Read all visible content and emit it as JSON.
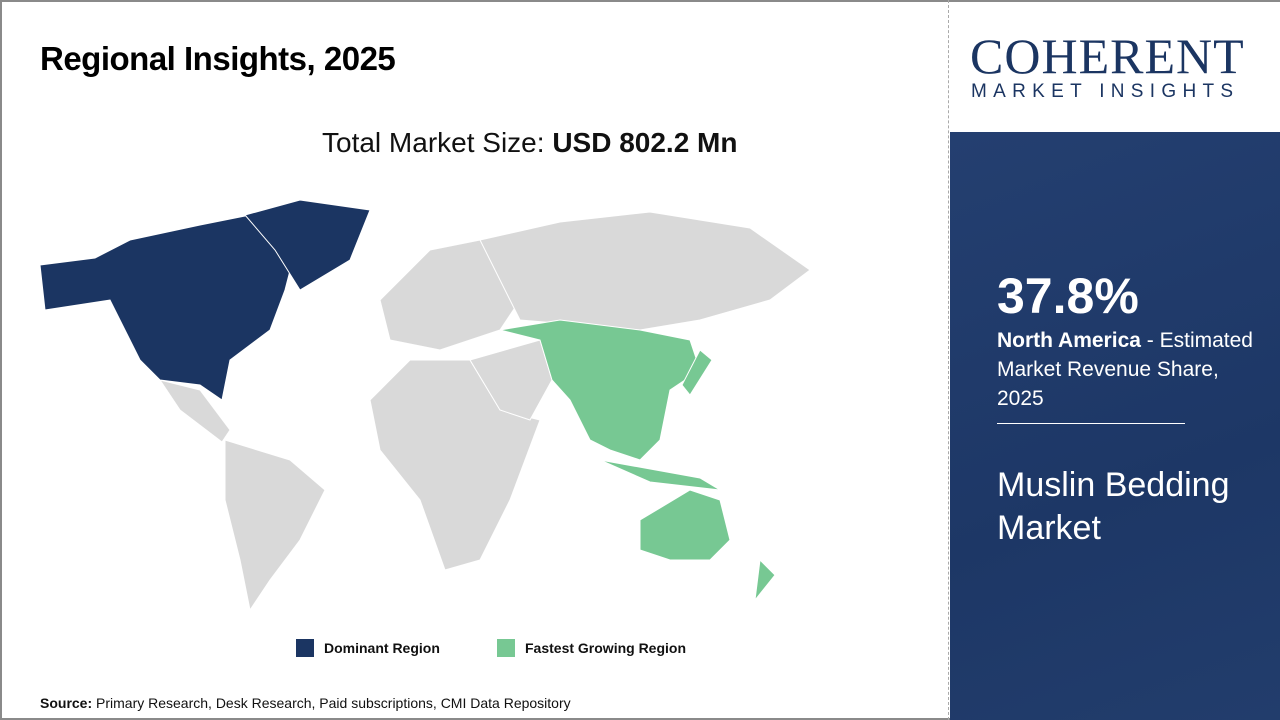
{
  "header": {
    "title": "Regional Insights, 2025"
  },
  "market_size": {
    "label": "Total Market Size: ",
    "value": "USD 802.2 Mn"
  },
  "map": {
    "dominant_region": "North America",
    "fastest_growing_region": "Asia Pacific",
    "colors": {
      "dominant": "#1b3562",
      "fastest": "#77c893",
      "other": "#d9d9d9"
    }
  },
  "legend": [
    {
      "label": "Dominant Region",
      "color": "#1b3562"
    },
    {
      "label": "Fastest Growing Region",
      "color": "#77c893"
    }
  ],
  "source": {
    "label": "Source:",
    "text": " Primary Research, Desk Research, Paid subscriptions, CMI Data Repository"
  },
  "logo": {
    "line1": "COHERENT",
    "line2": "MARKET INSIGHTS"
  },
  "panel": {
    "share": "37.8%",
    "region": "North America",
    "share_text": " - Estimated Market Revenue Share, 2025",
    "market_name": "Muslin Bedding Market"
  }
}
